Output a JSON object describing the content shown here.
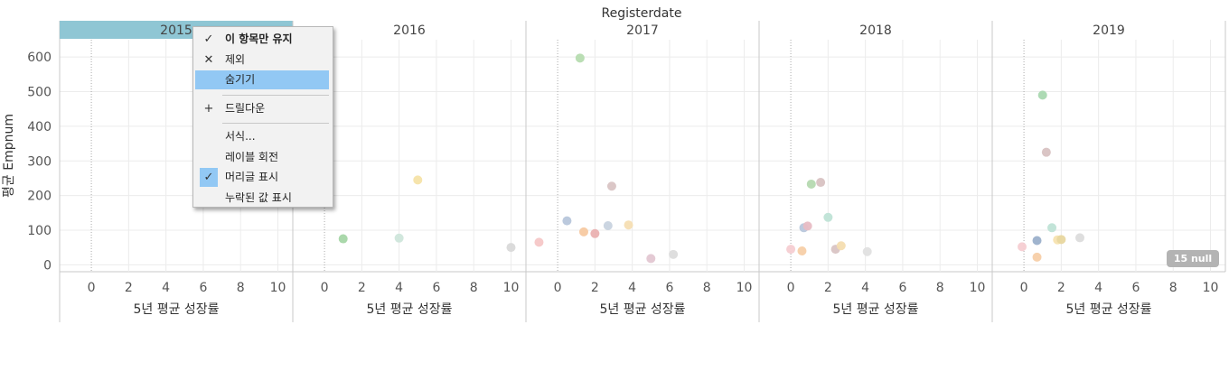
{
  "chart_data": {
    "type": "scatter",
    "title": "Registerdate",
    "xlabel": "5년 평균 성장률",
    "ylabel": "평균 Empnum",
    "xlim": [
      -1.7,
      10.8
    ],
    "ylim": [
      -20,
      650
    ],
    "x_ticks": [
      "0",
      "2",
      "4",
      "6",
      "8",
      "10"
    ],
    "y_ticks": [
      "600",
      "500",
      "400",
      "300",
      "200",
      "100",
      "0"
    ],
    "grid": true,
    "null_indicator": "15 null",
    "panels": [
      {
        "label": "2015",
        "selected": true,
        "points": []
      },
      {
        "label": "2016",
        "selected": false,
        "points": [
          {
            "x": 1.0,
            "y": 75,
            "color": "#a5d6a7"
          },
          {
            "x": 4.0,
            "y": 77,
            "color": "#cfe6db"
          },
          {
            "x": 5.0,
            "y": 245,
            "color": "#f6e3a8"
          },
          {
            "x": 10.0,
            "y": 50,
            "color": "#d9d9d9"
          }
        ]
      },
      {
        "label": "2017",
        "selected": false,
        "points": [
          {
            "x": 1.2,
            "y": 597,
            "color": "#b6dcb0"
          },
          {
            "x": -1.0,
            "y": 65,
            "color": "#f6c7c7"
          },
          {
            "x": 0.5,
            "y": 127,
            "color": "#b7c6db"
          },
          {
            "x": 1.4,
            "y": 95,
            "color": "#f7c9a1"
          },
          {
            "x": 2.0,
            "y": 90,
            "color": "#eab1b1"
          },
          {
            "x": 2.7,
            "y": 113,
            "color": "#c8d3df"
          },
          {
            "x": 2.9,
            "y": 227,
            "color": "#d9c4c4"
          },
          {
            "x": 3.8,
            "y": 115,
            "color": "#f5deb3"
          },
          {
            "x": 5.0,
            "y": 18,
            "color": "#e3c7d2"
          },
          {
            "x": 6.2,
            "y": 30,
            "color": "#dcdcdc"
          }
        ]
      },
      {
        "label": "2018",
        "selected": false,
        "points": [
          {
            "x": 0.0,
            "y": 45,
            "color": "#f6cdd2"
          },
          {
            "x": 0.6,
            "y": 40,
            "color": "#f7cfa8"
          },
          {
            "x": 0.7,
            "y": 107,
            "color": "#b8c7dc"
          },
          {
            "x": 0.9,
            "y": 112,
            "color": "#e8bcc4"
          },
          {
            "x": 1.1,
            "y": 233,
            "color": "#b5d9b0"
          },
          {
            "x": 1.6,
            "y": 238,
            "color": "#d8c2c2"
          },
          {
            "x": 2.0,
            "y": 137,
            "color": "#bfe3d6"
          },
          {
            "x": 2.4,
            "y": 45,
            "color": "#d9c4c4"
          },
          {
            "x": 2.7,
            "y": 55,
            "color": "#f4ddb0"
          },
          {
            "x": 4.1,
            "y": 38,
            "color": "#e0e0e0"
          }
        ]
      },
      {
        "label": "2019",
        "selected": false,
        "points": [
          {
            "x": -0.1,
            "y": 52,
            "color": "#f6cdd2"
          },
          {
            "x": 0.7,
            "y": 22,
            "color": "#f7cfa8"
          },
          {
            "x": 0.7,
            "y": 70,
            "color": "#9bb0cb"
          },
          {
            "x": 1.0,
            "y": 490,
            "color": "#a9d8b0"
          },
          {
            "x": 1.2,
            "y": 325,
            "color": "#d8c2c2"
          },
          {
            "x": 1.5,
            "y": 107,
            "color": "#bfe3d6"
          },
          {
            "x": 1.8,
            "y": 72,
            "color": "#f7e3b0"
          },
          {
            "x": 2.0,
            "y": 73,
            "color": "#e8d7a0"
          },
          {
            "x": 3.0,
            "y": 78,
            "color": "#dcdcdc"
          }
        ]
      }
    ]
  },
  "context_menu": {
    "items": [
      {
        "label": "이 항목만 유지",
        "icon": "✓",
        "bold": true
      },
      {
        "label": "제외",
        "icon": "✕"
      },
      {
        "label": "숨기기",
        "highlight": true
      },
      {
        "separator": true
      },
      {
        "label": "드릴다운",
        "icon": "+"
      },
      {
        "separator": true
      },
      {
        "label": "서식..."
      },
      {
        "label": "레이블 회전"
      },
      {
        "label": "머리글 표시",
        "icon": "✓",
        "checked": true
      },
      {
        "label": "누락된 값 표시"
      }
    ]
  },
  "colors": {
    "selected_header": "#8fc6d4",
    "menu_highlight": "#92c8f4",
    "grid": "#ececec",
    "divider": "#c8c8c8"
  }
}
